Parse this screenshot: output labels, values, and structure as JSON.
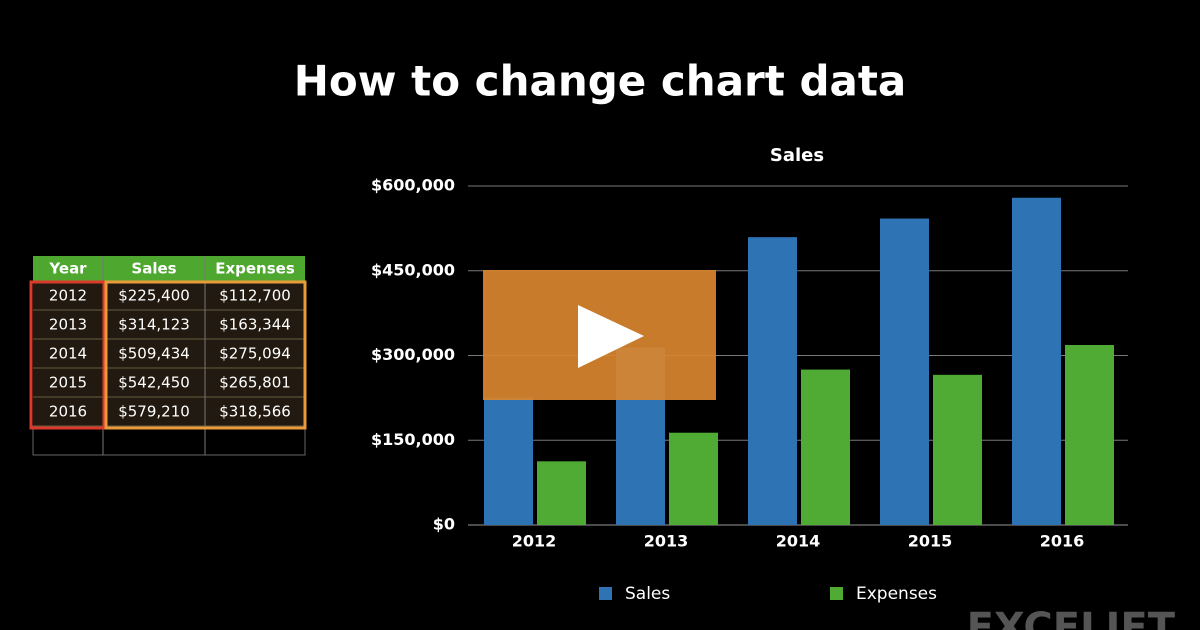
{
  "title": "How to change chart data",
  "table": {
    "header": [
      "Year",
      "Sales",
      "Expenses"
    ],
    "rows": [
      [
        "2012",
        "$225,400",
        "$112,700"
      ],
      [
        "2013",
        "$314,123",
        "$163,344"
      ],
      [
        "2014",
        "$509,434",
        "$275,094"
      ],
      [
        "2015",
        "$542,450",
        "$265,801"
      ],
      [
        "2016",
        "$579,210",
        "$318,566"
      ]
    ]
  },
  "chart_data": {
    "type": "bar",
    "title": "Sales",
    "categories": [
      "2012",
      "2013",
      "2014",
      "2015",
      "2016"
    ],
    "series": [
      {
        "name": "Sales",
        "color": "#2e74b5",
        "values": [
          225400,
          314123,
          509434,
          542450,
          579210
        ]
      },
      {
        "name": "Expenses",
        "color": "#4fab33",
        "values": [
          112700,
          163344,
          275094,
          265801,
          318566
        ]
      }
    ],
    "ylim": [
      0,
      600000
    ],
    "yticks": [
      {
        "value": 0,
        "label": "$0"
      },
      {
        "value": 150000,
        "label": "$150,000"
      },
      {
        "value": 300000,
        "label": "$300,000"
      },
      {
        "value": 450000,
        "label": "$450,000"
      },
      {
        "value": 600000,
        "label": "$600,000"
      }
    ],
    "grid": true,
    "legend": "bottom"
  },
  "watermark": "EXCELJET"
}
